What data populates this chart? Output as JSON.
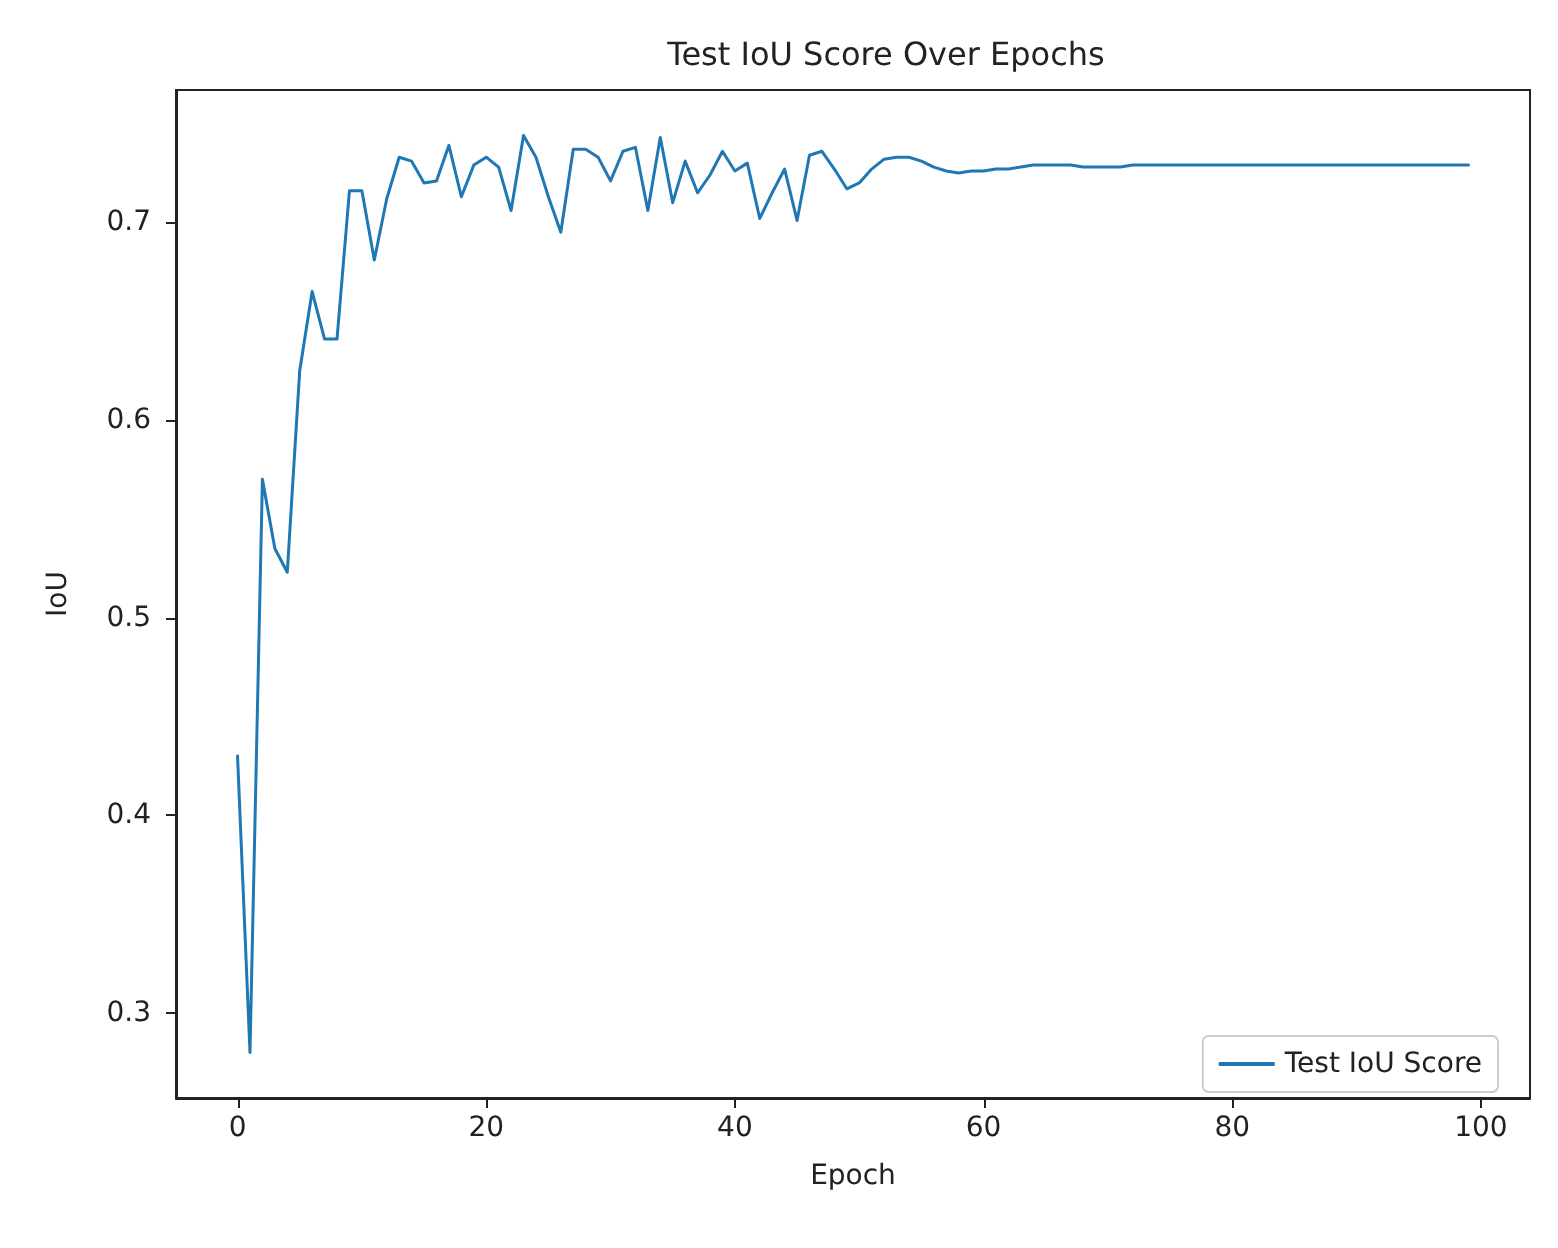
{
  "chart_data": {
    "type": "line",
    "title": "Test IoU Score Over Epochs",
    "xlabel": "Epoch",
    "ylabel": "IoU",
    "x": [
      0,
      1,
      2,
      3,
      4,
      5,
      6,
      7,
      8,
      9,
      10,
      11,
      12,
      13,
      14,
      15,
      16,
      17,
      18,
      19,
      20,
      21,
      22,
      23,
      24,
      25,
      26,
      27,
      28,
      29,
      30,
      31,
      32,
      33,
      34,
      35,
      36,
      37,
      38,
      39,
      40,
      41,
      42,
      43,
      44,
      45,
      46,
      47,
      48,
      49,
      50,
      51,
      52,
      53,
      54,
      55,
      56,
      57,
      58,
      59,
      60,
      61,
      62,
      63,
      64,
      65,
      66,
      67,
      68,
      69,
      70,
      71,
      72,
      73,
      74,
      75,
      76,
      77,
      78,
      79,
      80,
      81,
      82,
      83,
      84,
      85,
      86,
      87,
      88,
      89,
      90,
      91,
      92,
      93,
      94,
      95,
      96,
      97,
      98,
      99
    ],
    "series": [
      {
        "name": "Test IoU Score",
        "color": "#1f77b4",
        "values": [
          0.43,
          0.28,
          0.57,
          0.535,
          0.523,
          0.625,
          0.665,
          0.641,
          0.641,
          0.716,
          0.716,
          0.681,
          0.712,
          0.733,
          0.731,
          0.72,
          0.721,
          0.739,
          0.713,
          0.729,
          0.733,
          0.728,
          0.706,
          0.744,
          0.733,
          0.713,
          0.695,
          0.737,
          0.737,
          0.733,
          0.721,
          0.736,
          0.738,
          0.706,
          0.743,
          0.71,
          0.731,
          0.715,
          0.724,
          0.736,
          0.726,
          0.73,
          0.702,
          0.715,
          0.727,
          0.701,
          0.734,
          0.736,
          0.727,
          0.717,
          0.72,
          0.727,
          0.732,
          0.733,
          0.733,
          0.731,
          0.728,
          0.726,
          0.725,
          0.726,
          0.726,
          0.727,
          0.727,
          0.728,
          0.729,
          0.729,
          0.729,
          0.729,
          0.728,
          0.728,
          0.728,
          0.728,
          0.729,
          0.729,
          0.729,
          0.729,
          0.729,
          0.729,
          0.729,
          0.729,
          0.729,
          0.729,
          0.729,
          0.729,
          0.729,
          0.729,
          0.729,
          0.729,
          0.729,
          0.729,
          0.729,
          0.729,
          0.729,
          0.729,
          0.729,
          0.729,
          0.729,
          0.729,
          0.729,
          0.729
        ]
      }
    ],
    "xlim": [
      -4.95,
      103.95
    ],
    "xticks": [
      0,
      20,
      40,
      60,
      80,
      100
    ],
    "ylim": [
      0.257,
      0.767
    ],
    "yticks": [
      0.3,
      0.4,
      0.5,
      0.6,
      0.7
    ],
    "grid": false,
    "legend": "bottom right",
    "marker": "none",
    "line_style": "solid"
  }
}
